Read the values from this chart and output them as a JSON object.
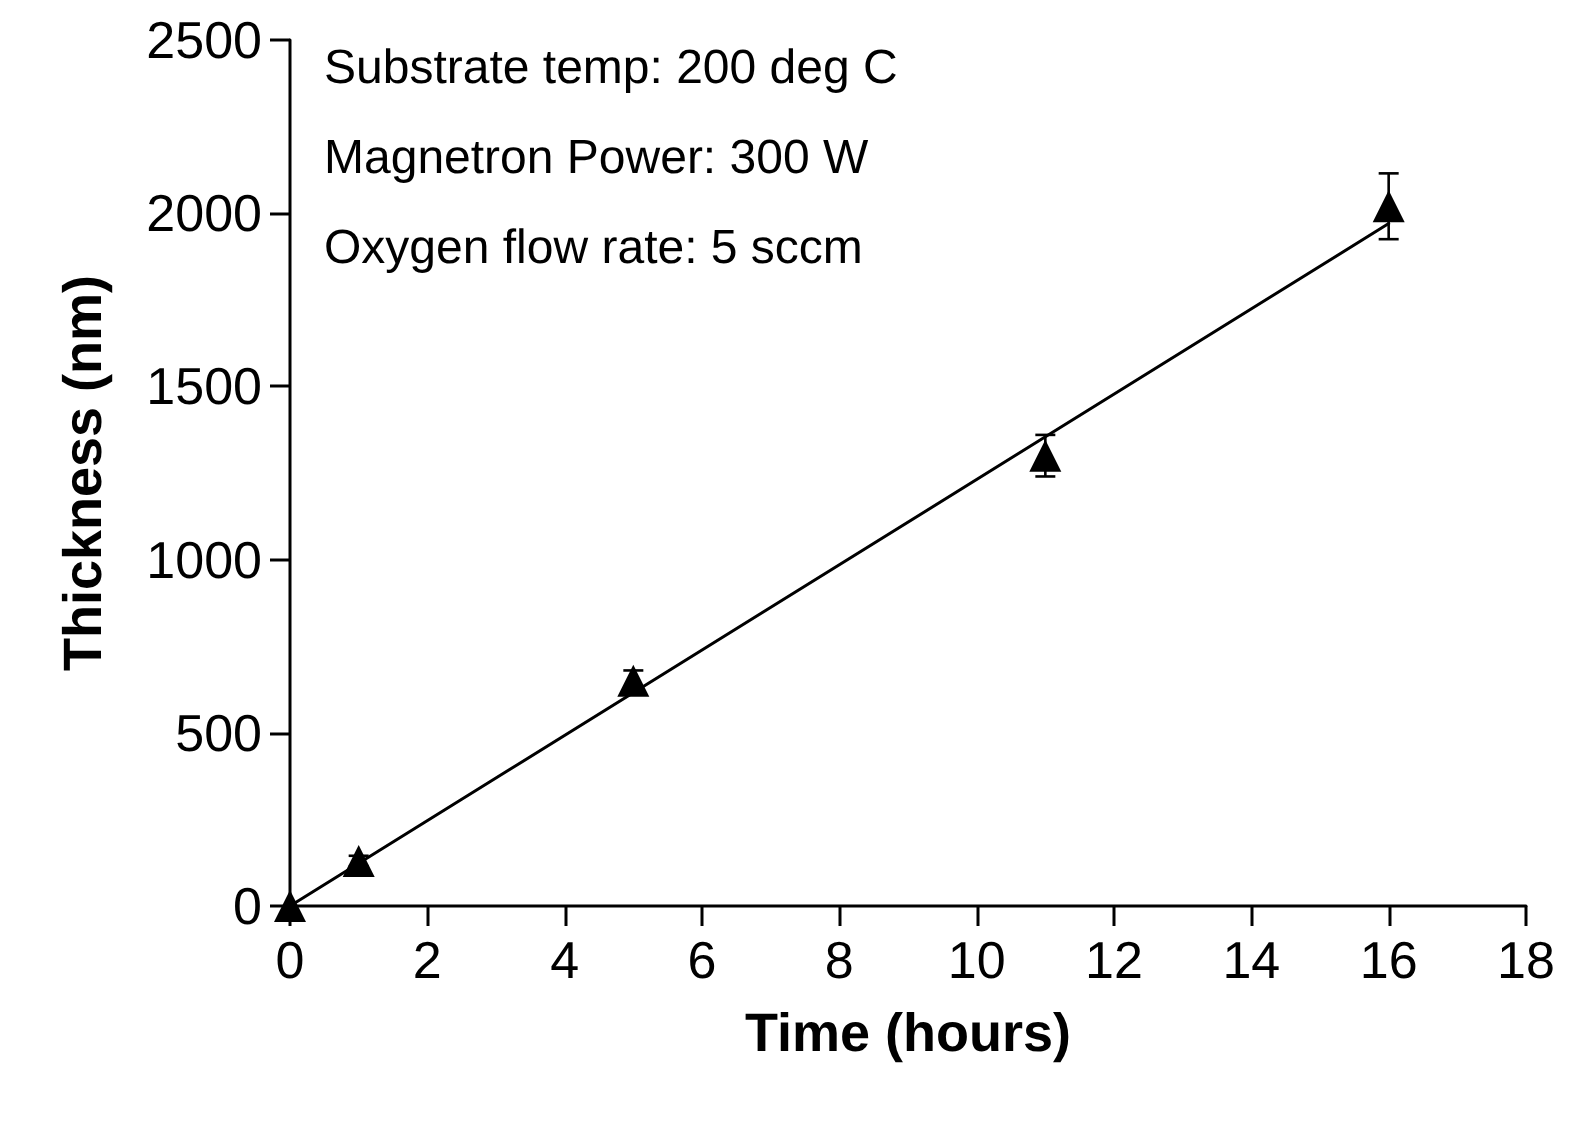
{
  "chart_data": {
    "type": "scatter",
    "xlabel": "Time (hours)",
    "ylabel": "Thickness (nm)",
    "annotations": [
      "Substrate temp: 200 deg C",
      "Magnetron Power: 300 W",
      "Oxygen flow rate: 5 sccm"
    ],
    "series": [
      {
        "color": "#000000",
        "x": [
          0,
          1,
          5,
          11,
          16
        ],
        "values": [
          0,
          130,
          650,
          1300,
          2020
        ],
        "errors": [
          null,
          15,
          30,
          60,
          95
        ],
        "marker": "triangle"
      },
      {
        "type": "line",
        "color": "#000000",
        "x": [
          0,
          16
        ],
        "values": [
          0,
          1970
        ],
        "marker": "none",
        "line_style": "solid"
      }
    ],
    "xlim": [
      0,
      18
    ],
    "xticks": [
      0,
      2,
      4,
      6,
      8,
      10,
      12,
      14,
      16,
      18
    ],
    "ylim": [
      0,
      2500
    ],
    "yticks": [
      0,
      500,
      1000,
      1500,
      2000,
      2500
    ],
    "grid": false
  }
}
